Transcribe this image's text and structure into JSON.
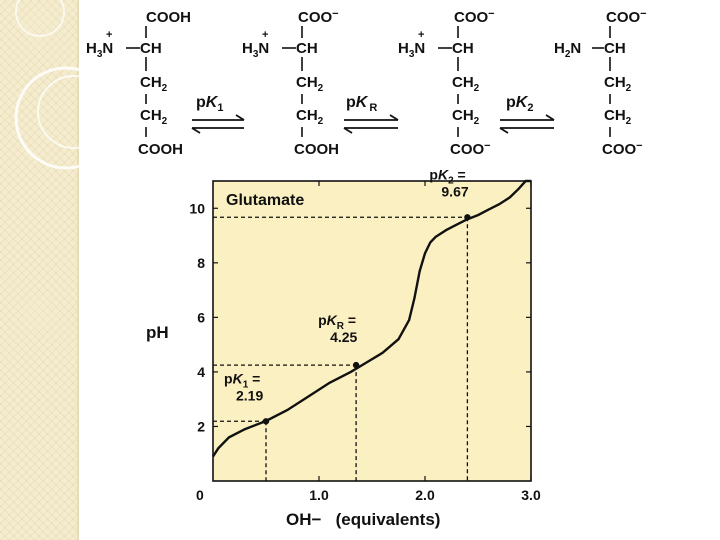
{
  "species": [
    {
      "top": "COOH",
      "amine": {
        "h": "H",
        "n3": "3",
        "n": "N",
        "charge": "+"
      },
      "ch": "CH",
      "ch2a": "CH",
      "ch2b": "CH",
      "sub2": "2",
      "bottom": "COOH"
    },
    {
      "top": "COO",
      "top_charge": "−",
      "amine": {
        "h": "H",
        "n3": "3",
        "n": "N",
        "charge": "+"
      },
      "ch": "CH",
      "ch2a": "CH",
      "ch2b": "CH",
      "sub2": "2",
      "bottom": "COOH"
    },
    {
      "top": "COO",
      "top_charge": "−",
      "amine": {
        "h": "H",
        "n3": "3",
        "n": "N",
        "charge": "+"
      },
      "ch": "CH",
      "ch2a": "CH",
      "ch2b": "CH",
      "sub2": "2",
      "bottom": "COO",
      "bottom_charge": "−"
    },
    {
      "top": "COO",
      "top_charge": "−",
      "amine": {
        "h": "H",
        "n3": "2",
        "n": "N",
        "charge": ""
      },
      "ch": "CH",
      "ch2a": "CH",
      "ch2b": "CH",
      "sub2": "2",
      "bottom": "COO",
      "bottom_charge": "−"
    }
  ],
  "equilibria": [
    {
      "p": "p",
      "k": "K",
      "sub": "1"
    },
    {
      "p": "p",
      "k": "K",
      "sub": "R"
    },
    {
      "p": "p",
      "k": "K",
      "sub": "2"
    }
  ],
  "colors": {
    "plot_background": "#fbf0c2",
    "curve": "#111111",
    "sidebar": "#f4eccd"
  },
  "chart_data": {
    "type": "line",
    "title": "Glutamate",
    "xlabel": "OH−   (equivalents)",
    "ylabel": "pH",
    "xlim": [
      0,
      3.0
    ],
    "ylim": [
      0,
      11
    ],
    "x_ticks": [
      "0",
      "1.0",
      "2.0",
      "3.0"
    ],
    "y_ticks": [
      "2",
      "4",
      "6",
      "8",
      "10"
    ],
    "grid": false,
    "series": [
      {
        "x": [
          0,
          0.05,
          0.15,
          0.3,
          0.5,
          0.7,
          0.9,
          1.1,
          1.3,
          1.45,
          1.6,
          1.75,
          1.85,
          1.9,
          1.95,
          2.0,
          2.05,
          2.1,
          2.2,
          2.3,
          2.4,
          2.5,
          2.6,
          2.7,
          2.8,
          2.88,
          2.95,
          3.0
        ],
        "y": [
          0.9,
          1.2,
          1.6,
          1.9,
          2.2,
          2.6,
          3.1,
          3.6,
          4.0,
          4.35,
          4.7,
          5.2,
          5.9,
          6.7,
          7.7,
          8.35,
          8.75,
          8.95,
          9.2,
          9.4,
          9.6,
          9.75,
          9.95,
          10.15,
          10.4,
          10.7,
          11.0,
          11.3
        ]
      }
    ],
    "pK_points": [
      {
        "x": 0.5,
        "y": 2.19,
        "label_p": "p",
        "label_k": "K",
        "label_sub": "1",
        "label_eq": " =",
        "value": "2.19"
      },
      {
        "x": 1.35,
        "y": 4.25,
        "label_p": "p",
        "label_k": "K",
        "label_sub": "R",
        "label_eq": " =",
        "value": "4.25"
      },
      {
        "x": 2.4,
        "y": 9.67,
        "label_p": "p",
        "label_k": "K",
        "label_sub": "2",
        "label_eq": " =",
        "value": "9.67"
      }
    ]
  }
}
